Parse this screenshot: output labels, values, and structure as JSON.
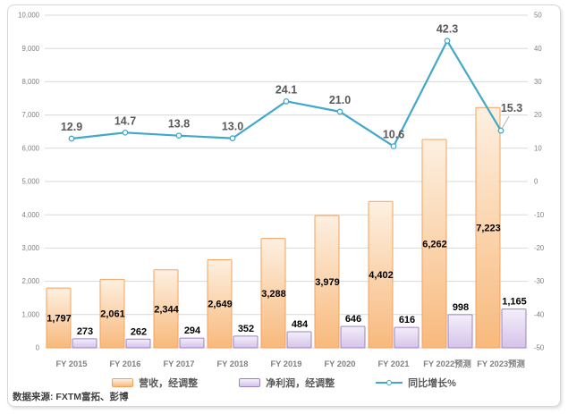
{
  "chart_data": {
    "type": "combo",
    "subtype": "clustered-bar-with-line",
    "title": "",
    "categories": [
      "FY 2015",
      "FY 2016",
      "FY 2017",
      "FY 2018",
      "FY 2019",
      "FY 2020",
      "FY 2021",
      "FY 2022预测",
      "FY 2023预测"
    ],
    "series": [
      {
        "name": "营收，经调整",
        "type": "bar",
        "axis": "left",
        "values": [
          1797,
          2061,
          2344,
          2649,
          3288,
          3979,
          4402,
          6262,
          7223
        ]
      },
      {
        "name": "净利润，经调整",
        "type": "bar",
        "axis": "left",
        "values": [
          273,
          262,
          294,
          352,
          484,
          646,
          616,
          998,
          1165
        ]
      },
      {
        "name": "同比增长%",
        "type": "line",
        "axis": "right",
        "values": [
          12.9,
          14.7,
          13.8,
          13.0,
          24.1,
          21.0,
          10.6,
          42.3,
          15.3
        ],
        "last_label_callout": true
      }
    ],
    "left_axis": {
      "min": 0,
      "max": 10000,
      "step": 1000,
      "tick_labels": [
        "0",
        "1,000",
        "2,000",
        "3,000",
        "4,000",
        "5,000",
        "6,000",
        "7,000",
        "8,000",
        "9,000",
        "10,000"
      ]
    },
    "right_axis": {
      "min": -50,
      "max": 50,
      "step": 10,
      "tick_labels": [
        "-50",
        "-40",
        "-30",
        "-20",
        "-10",
        "0",
        "10",
        "20",
        "30",
        "40",
        "50"
      ]
    },
    "grid": true,
    "legend_position": "bottom",
    "colors": {
      "revenue_fill_top": "#fdf0e1",
      "revenue_fill_bottom": "#f8b97c",
      "revenue_border": "#f0a35f",
      "profit_fill_top": "#f4effa",
      "profit_fill_bottom": "#d5c3e9",
      "profit_border": "#9c83c6",
      "growth_line": "#41a8cb",
      "gridline": "#d9d9d9",
      "axis_text": "#7f7f7f",
      "category_text": "#808080",
      "bar_label": "#000000",
      "line_label": "#595959",
      "callout_leader": "#b0b0b0"
    }
  },
  "source_note": "数据来源: FXTM富拓、彭博"
}
